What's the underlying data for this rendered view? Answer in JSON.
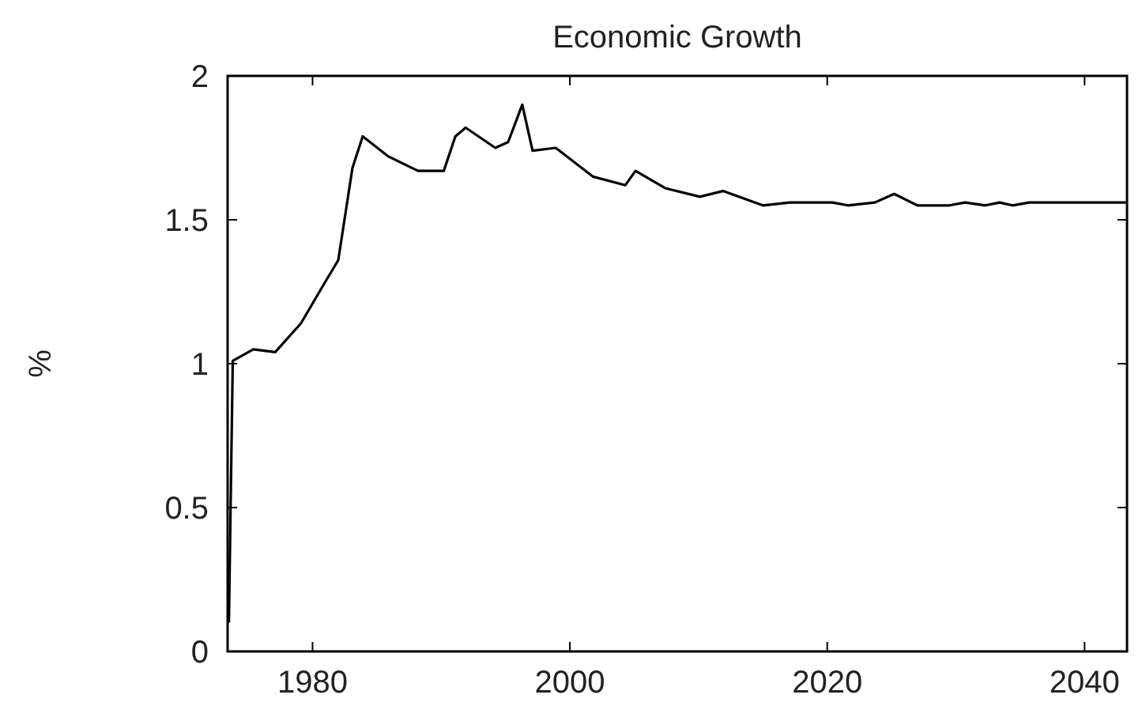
{
  "chart_data": {
    "type": "line",
    "title": "Economic Growth",
    "ylabel": "%",
    "x": [
      1973.5,
      1973.8,
      1975.4,
      1977.1,
      1979.1,
      1980.8,
      1982.0,
      1983.1,
      1983.9,
      1985.9,
      1988.2,
      1990.2,
      1991.1,
      1991.9,
      1994.2,
      1995.2,
      1996.3,
      1997.1,
      1998.9,
      2001.8,
      2004.3,
      2005.1,
      2007.4,
      2010.1,
      2011.9,
      2015.0,
      2017.1,
      2020.4,
      2021.6,
      2023.7,
      2025.2,
      2027.0,
      2029.5,
      2030.7,
      2032.3,
      2033.4,
      2034.4,
      2035.7,
      2043.3
    ],
    "series": [
      {
        "color": "#000000",
        "values": [
          0.1,
          1.01,
          1.05,
          1.04,
          1.14,
          1.27,
          1.36,
          1.68,
          1.79,
          1.72,
          1.67,
          1.67,
          1.79,
          1.82,
          1.75,
          1.77,
          1.9,
          1.74,
          1.75,
          1.65,
          1.62,
          1.67,
          1.61,
          1.58,
          1.6,
          1.55,
          1.56,
          1.56,
          1.55,
          1.56,
          1.59,
          1.55,
          1.55,
          1.56,
          1.55,
          1.56,
          1.55,
          1.56,
          1.56
        ]
      }
    ],
    "xlim": [
      1973.4,
      2043.3
    ],
    "ylim": [
      0,
      2
    ],
    "xticks": [
      1980,
      2000,
      2020,
      2040
    ],
    "yticks": [
      0,
      0.5,
      1,
      1.5,
      2
    ],
    "grid": false,
    "marker": "none",
    "line_style": "solid"
  }
}
